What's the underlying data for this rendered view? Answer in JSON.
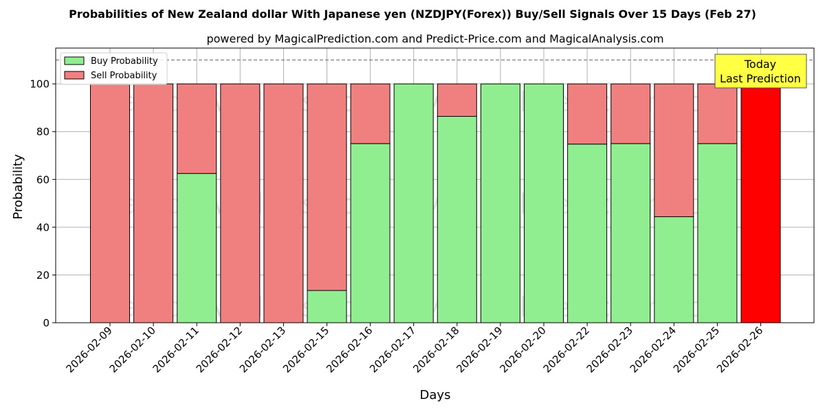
{
  "chart_data": {
    "type": "bar",
    "stacked": true,
    "title": "Probabilities of New Zealand dollar With Japanese yen (NZDJPY(Forex)) Buy/Sell Signals Over 15 Days (Feb 27)",
    "subtitle": "powered by MagicalPrediction.com and Predict-Price.com and MagicalAnalysis.com",
    "xlabel": "Days",
    "ylabel": "Probability",
    "ylim": [
      0,
      115
    ],
    "yticks": [
      0,
      20,
      40,
      60,
      80,
      100
    ],
    "reference_line": 110,
    "grid": true,
    "legend_position": "top-left",
    "categories": [
      "2026-02-09",
      "2026-02-10",
      "2026-02-11",
      "2026-02-12",
      "2026-02-13",
      "2026-02-15",
      "2026-02-16",
      "2026-02-17",
      "2026-02-18",
      "2026-02-19",
      "2026-02-20",
      "2026-02-22",
      "2026-02-23",
      "2026-02-24",
      "2026-02-25",
      "2026-02-26"
    ],
    "series": [
      {
        "name": "Buy Probability",
        "color": "#90ee90",
        "values": [
          0,
          0,
          62.5,
          0,
          0,
          13.5,
          75,
          100,
          86.4,
          100,
          100,
          74.8,
          75,
          44.4,
          75,
          0
        ]
      },
      {
        "name": "Sell Probability",
        "color": "#f08080",
        "values": [
          100,
          100,
          37.5,
          100,
          100,
          86.5,
          25,
          0,
          13.6,
          0,
          0,
          25.2,
          25,
          55.6,
          25,
          100
        ]
      }
    ],
    "highlight": {
      "category": "2026-02-26",
      "color": "#ff0000",
      "value": 100
    },
    "annotation": {
      "line1": "Today",
      "line2": "Last Prediction",
      "color": "#ffff44"
    },
    "watermarks": [
      "MagicalAnalysis.com",
      "MagicalPrediction.com"
    ]
  }
}
